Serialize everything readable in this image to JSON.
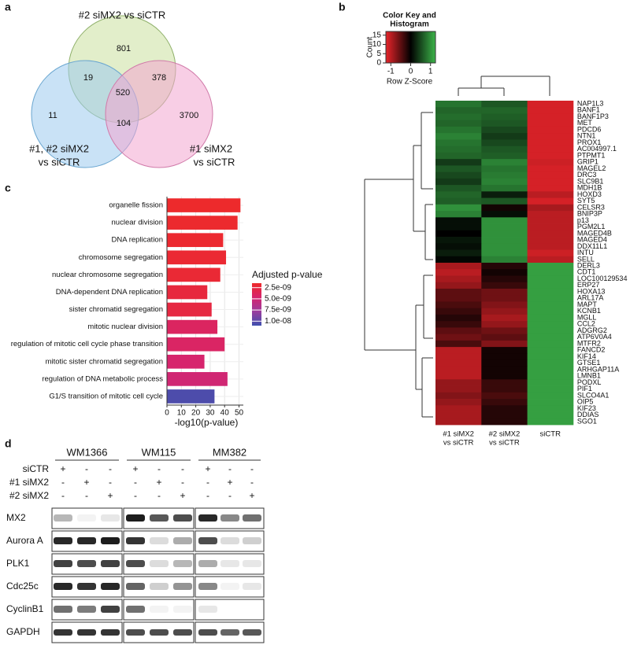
{
  "panel_labels": [
    "a",
    "b",
    "c",
    "d"
  ],
  "venn": {
    "top_label": "#2 siMX2 vs siCTR",
    "left_label": [
      "#1, #2 siMX2",
      "vs siCTR"
    ],
    "right_label": [
      "#1 siMX2",
      "vs siCTR"
    ],
    "top_only": 801,
    "top_left": 19,
    "top_right": 378,
    "center": 520,
    "left_only": 11,
    "left_right": 104,
    "right_only": 3700
  },
  "heatmap": {
    "key_title": [
      "Color Key and",
      "Histogram"
    ],
    "key_ylabel": "Count",
    "key_xlabel": "Row Z-Score",
    "key_yticks": [
      0,
      5,
      10,
      15
    ],
    "key_ylim": [
      0,
      17
    ],
    "key_xticks": [
      -1,
      0,
      1
    ],
    "zlim": [
      -1.25,
      1.25
    ],
    "colors": [
      "#e8242a",
      "#000000",
      "#3cb54a"
    ],
    "columns": [
      [
        "#1 siMX2",
        "vs siCTR"
      ],
      [
        "#2 siMX2",
        "vs siCTR"
      ],
      [
        "siCTR"
      ]
    ],
    "rows": [
      "NAP1L3",
      "BANF1",
      "BANF1P3",
      "MET",
      "PDCD6",
      "NTN1",
      "PROX1",
      "AC004997.1",
      "PTPMT1",
      "GRIP1",
      "MAGEL2",
      "DRC3",
      "SLC9B1",
      "MDH1B",
      "HOXD3",
      "SYT5",
      "CELSR3",
      "BNIP3P",
      "p13",
      "PGM2L1",
      "MAGED4B",
      "MAGED4",
      "DDX11L1",
      "INTU",
      "SELL",
      "DERL3",
      "CDT1",
      "LOC100129534",
      "ERP27",
      "HOXA13",
      "ARL17A",
      "MAPT",
      "KCNB1",
      "MGLL",
      "CCL2",
      "ADGRG2",
      "ATP6V0A4",
      "MTFR2",
      "FANCD2",
      "KIF14",
      "GTSE1",
      "ARHGAP11A",
      "LMNB1",
      "PODXL",
      "PIF1",
      "SLCO4A1",
      "OIP5",
      "KIF23",
      "DDIAS",
      "SGO1"
    ],
    "values": [
      [
        0.8,
        0.6,
        -1.15
      ],
      [
        0.7,
        0.7,
        -1.15
      ],
      [
        0.75,
        0.65,
        -1.15
      ],
      [
        0.7,
        0.6,
        -1.15
      ],
      [
        0.8,
        0.5,
        -1.15
      ],
      [
        0.9,
        0.4,
        -1.15
      ],
      [
        0.8,
        0.5,
        -1.15
      ],
      [
        0.75,
        0.6,
        -1.15
      ],
      [
        0.7,
        0.65,
        -1.15
      ],
      [
        0.4,
        0.9,
        -1.1
      ],
      [
        0.6,
        0.8,
        -1.15
      ],
      [
        0.5,
        0.85,
        -1.15
      ],
      [
        0.4,
        0.9,
        -1.15
      ],
      [
        0.6,
        0.8,
        -1.15
      ],
      [
        0.7,
        0.2,
        -1.0
      ],
      [
        0.65,
        0.6,
        -1.15
      ],
      [
        1.0,
        -0.1,
        -0.9
      ],
      [
        0.9,
        0.1,
        -1.0
      ],
      [
        0.1,
        1.0,
        -1.0
      ],
      [
        0.1,
        1.0,
        -1.0
      ],
      [
        0.0,
        1.0,
        -1.0
      ],
      [
        0.15,
        1.0,
        -1.0
      ],
      [
        0.1,
        1.0,
        -1.0
      ],
      [
        0.2,
        1.0,
        -1.1
      ],
      [
        0.05,
        0.9,
        -1.0
      ],
      [
        -0.9,
        -0.2,
        1.1
      ],
      [
        -1.0,
        -0.1,
        1.1
      ],
      [
        -0.9,
        -0.2,
        1.1
      ],
      [
        -0.8,
        -0.3,
        1.1
      ],
      [
        -0.5,
        -0.6,
        1.1
      ],
      [
        -0.5,
        -0.6,
        1.1
      ],
      [
        -0.4,
        -0.7,
        1.1
      ],
      [
        -0.3,
        -0.8,
        1.1
      ],
      [
        -0.2,
        -0.9,
        1.1
      ],
      [
        -0.3,
        -0.8,
        1.1
      ],
      [
        -0.5,
        -0.6,
        1.1
      ],
      [
        -0.6,
        -0.5,
        1.1
      ],
      [
        -0.4,
        -0.7,
        1.1
      ],
      [
        -1.0,
        -0.1,
        1.1
      ],
      [
        -1.0,
        -0.1,
        1.1
      ],
      [
        -1.0,
        -0.1,
        1.1
      ],
      [
        -1.0,
        -0.1,
        1.1
      ],
      [
        -1.0,
        -0.1,
        1.1
      ],
      [
        -0.8,
        -0.3,
        1.1
      ],
      [
        -0.8,
        -0.3,
        1.1
      ],
      [
        -0.7,
        -0.4,
        1.1
      ],
      [
        -0.8,
        -0.3,
        1.1
      ],
      [
        -0.9,
        -0.2,
        1.1
      ],
      [
        -0.9,
        -0.2,
        1.1
      ],
      [
        -0.9,
        -0.2,
        1.1
      ]
    ]
  },
  "chart_data": {
    "type": "bar",
    "orientation": "horizontal",
    "categories": [
      "organelle fission",
      "nuclear division",
      "DNA replication",
      "chromosome segregation",
      "nuclear chromosome segregation",
      "DNA-dependent DNA replication",
      "sister chromatid segregation",
      "mitotic nuclear division",
      "regulation of mitotic cell cycle phase transition",
      "mitotic sister chromatid segregation",
      "regulation of DNA metabolic process",
      "G1/S transition of mitotic cell cycle"
    ],
    "values": [
      51,
      49,
      39,
      41,
      37,
      28,
      31,
      35,
      40,
      26,
      42,
      33
    ],
    "color_values": [
      1.6e-09,
      1.7e-09,
      1.8e-09,
      1.9e-09,
      2e-09,
      2.4e-09,
      2.6e-09,
      4e-09,
      4.2e-09,
      4.6e-09,
      5e-09,
      1.05e-08
    ],
    "xlabel": "-log10(p-value)",
    "xlim": [
      0,
      53
    ],
    "xticks": [
      0,
      10,
      20,
      30,
      40,
      50
    ],
    "grid": true,
    "colorbar": {
      "title": "Adjusted p-value",
      "lim": [
        1.5e-09,
        1.1e-08
      ],
      "colors": [
        "#ee2a2a",
        "#d6246e",
        "#9a3d9e",
        "#3f4fae"
      ],
      "ticks": [
        {
          "value": 2.5e-09,
          "label": "2.5e-09"
        },
        {
          "value": 5e-09,
          "label": "5.0e-09"
        },
        {
          "value": 7.5e-09,
          "label": "7.5e-09"
        },
        {
          "value": 1e-08,
          "label": "1.0e-08"
        }
      ]
    }
  },
  "blot": {
    "cell_lines": [
      "WM1366",
      "WM115",
      "MM382"
    ],
    "conditions": [
      "siCTR",
      "#1 siMX2",
      "#2 siMX2"
    ],
    "signs": [
      [
        "+",
        "-",
        "-",
        "+",
        "-",
        "-",
        "+",
        "-",
        "-"
      ],
      [
        "-",
        "+",
        "-",
        "-",
        "+",
        "-",
        "-",
        "+",
        "-"
      ],
      [
        "-",
        "-",
        "+",
        "-",
        "-",
        "+",
        "-",
        "-",
        "+"
      ]
    ],
    "proteins": [
      "MX2",
      "Aurora A",
      "PLK1",
      "Cdc25c",
      "CyclinB1",
      "GAPDH"
    ]
  }
}
